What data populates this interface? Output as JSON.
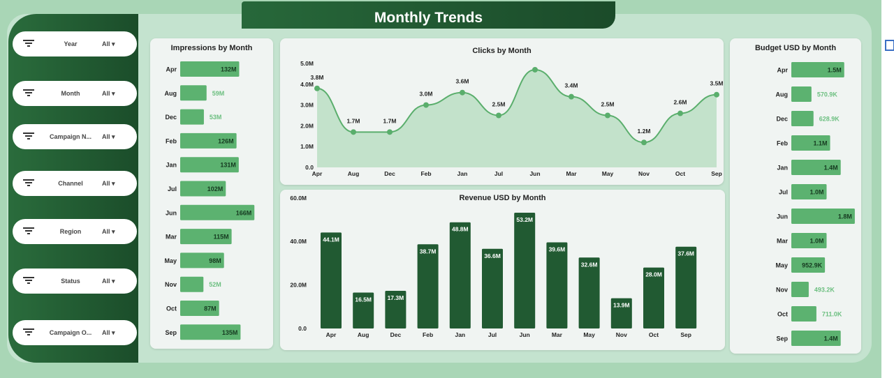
{
  "title": "Monthly Trends",
  "filters": [
    {
      "label": "Year",
      "value": "All"
    },
    {
      "label": "Month",
      "value": "All"
    },
    {
      "label": "Campaign N...",
      "value": "All"
    },
    {
      "label": "Channel",
      "value": "All"
    },
    {
      "label": "Region",
      "value": "All"
    },
    {
      "label": "Status",
      "value": "All"
    },
    {
      "label": "Campaign O...",
      "value": "All"
    }
  ],
  "colors": {
    "bar_light": "#5cb270",
    "bar_dark": "#215a32",
    "line": "#5aae6c"
  },
  "chart_data": [
    {
      "id": "impressions",
      "type": "bar",
      "orientation": "horizontal",
      "title": "Impressions by Month",
      "categories": [
        "Apr",
        "Aug",
        "Dec",
        "Feb",
        "Jan",
        "Jul",
        "Jun",
        "Mar",
        "May",
        "Nov",
        "Oct",
        "Sep"
      ],
      "values": [
        132,
        59,
        53,
        126,
        131,
        102,
        166,
        115,
        98,
        52,
        87,
        135
      ],
      "labels": [
        "132M",
        "59M",
        "53M",
        "126M",
        "131M",
        "102M",
        "166M",
        "115M",
        "98M",
        "52M",
        "87M",
        "135M"
      ],
      "unit": "M"
    },
    {
      "id": "clicks",
      "type": "area",
      "title": "Clicks by Month",
      "categories": [
        "Apr",
        "Aug",
        "Dec",
        "Feb",
        "Jan",
        "Jul",
        "Jun",
        "Mar",
        "May",
        "Nov",
        "Oct",
        "Sep"
      ],
      "values": [
        3.8,
        1.7,
        1.7,
        3.0,
        3.6,
        2.5,
        4.7,
        3.4,
        2.5,
        1.2,
        2.6,
        3.5
      ],
      "labels": [
        "3.8M",
        "1.7M",
        "1.7M",
        "3.0M",
        "3.6M",
        "2.5M",
        "",
        "3.4M",
        "2.5M",
        "1.2M",
        "2.6M",
        "3.5M"
      ],
      "yticks": [
        "0.0",
        "1.0M",
        "2.0M",
        "3.0M",
        "4.0M",
        "5.0M"
      ],
      "ylim": [
        0,
        5
      ]
    },
    {
      "id": "revenue",
      "type": "bar",
      "title": "Revenue USD by Month",
      "categories": [
        "Apr",
        "Aug",
        "Dec",
        "Feb",
        "Jan",
        "Jul",
        "Jun",
        "Mar",
        "May",
        "Nov",
        "Oct",
        "Sep"
      ],
      "values": [
        44.1,
        16.5,
        17.3,
        38.7,
        48.8,
        36.6,
        53.2,
        39.6,
        32.6,
        13.9,
        28.0,
        37.6
      ],
      "labels": [
        "44.1M",
        "16.5M",
        "17.3M",
        "38.7M",
        "48.8M",
        "36.6M",
        "53.2M",
        "39.6M",
        "32.6M",
        "13.9M",
        "28.0M",
        "37.6M"
      ],
      "yticks": [
        "0.0",
        "20.0M",
        "40.0M",
        "60.0M"
      ],
      "ylim": [
        0,
        60
      ]
    },
    {
      "id": "budget",
      "type": "bar",
      "orientation": "horizontal",
      "title": "Budget USD by Month",
      "categories": [
        "Apr",
        "Aug",
        "Dec",
        "Feb",
        "Jan",
        "Jul",
        "Jun",
        "Mar",
        "May",
        "Nov",
        "Oct",
        "Sep"
      ],
      "values": [
        1.5,
        0.5709,
        0.6289,
        1.1,
        1.4,
        1.0,
        1.8,
        1.0,
        0.9529,
        0.4932,
        0.711,
        1.4
      ],
      "labels": [
        "1.5M",
        "570.9K",
        "628.9K",
        "1.1M",
        "1.4M",
        "1.0M",
        "1.8M",
        "1.0M",
        "952.9K",
        "493.2K",
        "711.0K",
        "1.4M"
      ],
      "unit": "M"
    }
  ]
}
